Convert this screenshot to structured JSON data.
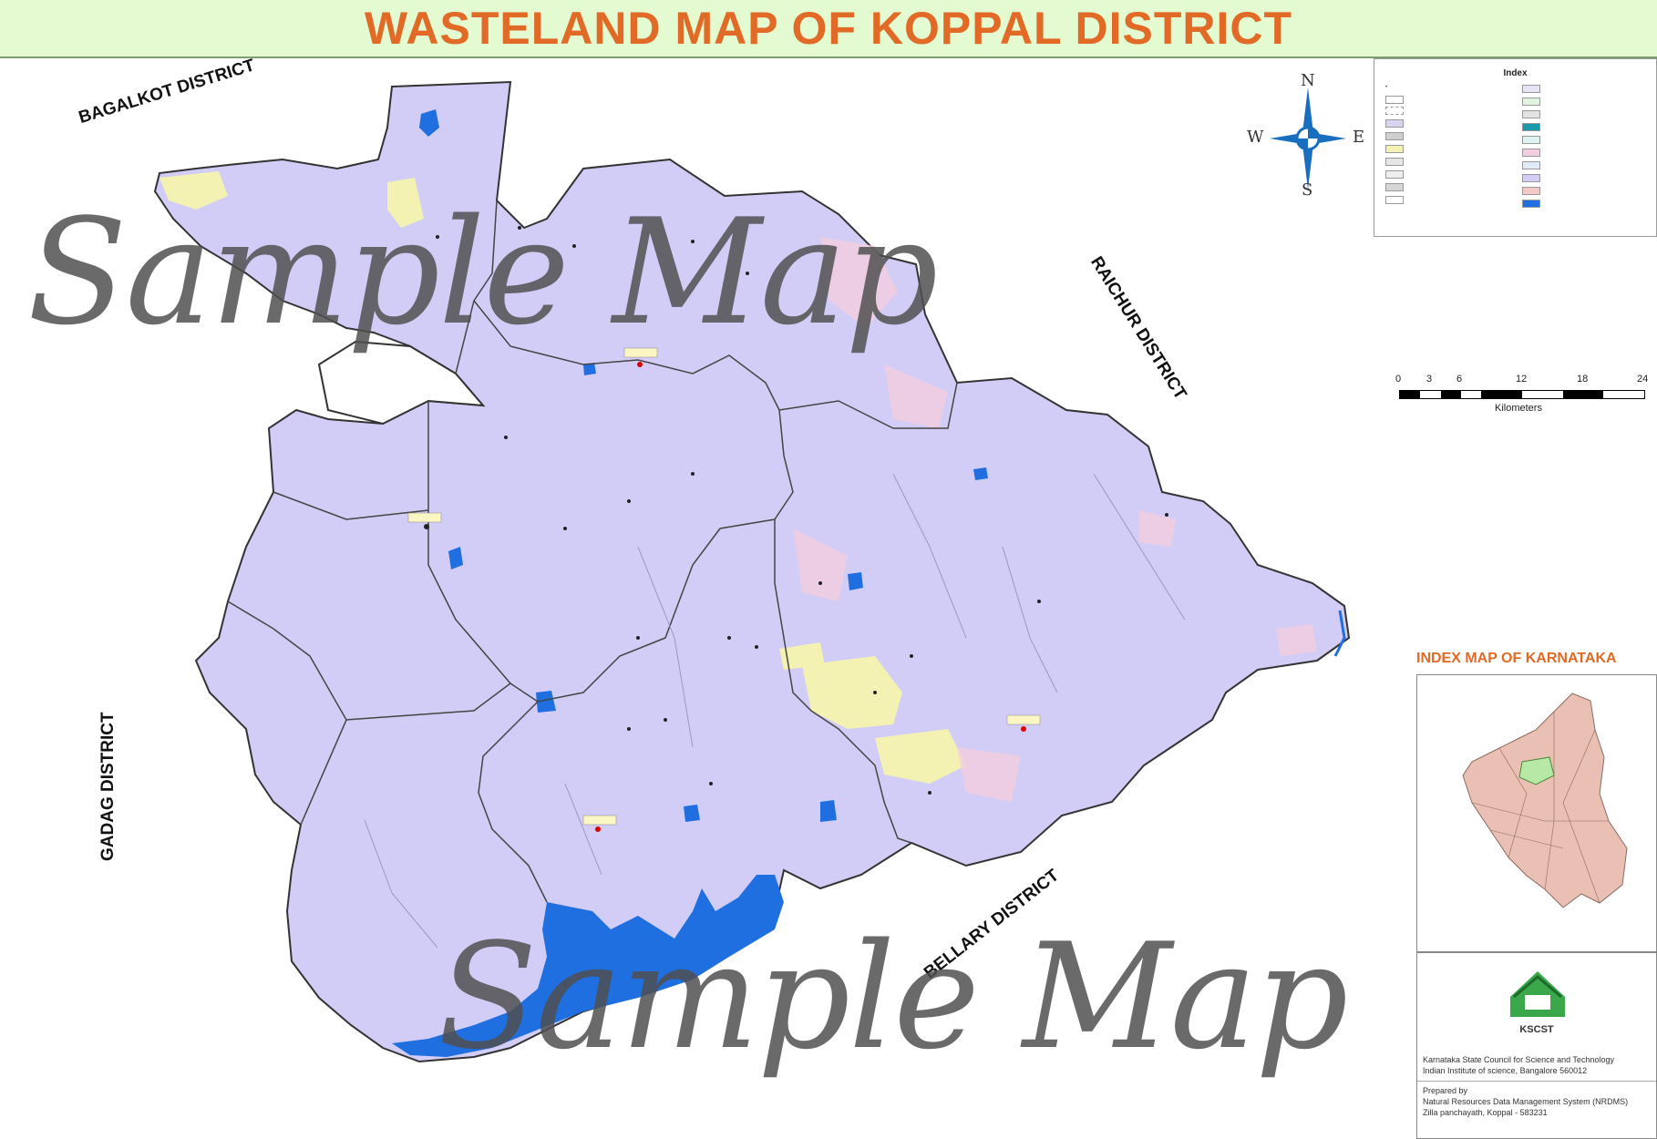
{
  "title": "WASTELAND  MAP OF KOPPAL DISTRICT",
  "neighbors": {
    "bagalkot": "BAGALKOT  DISTRICT",
    "raichur": "RAICHUR  DISTRICT",
    "gadag": "GADAG DISTRICT",
    "bellary": "BELLARY DISTRICT"
  },
  "legend": {
    "title": "Index"
  },
  "compass": {
    "n": "N",
    "s": "S",
    "e": "E",
    "w": "W"
  },
  "scale": {
    "ticks": [
      "0",
      "3",
      "6",
      "12",
      "18",
      "24"
    ],
    "unit": "Kilometers"
  },
  "index_map": {
    "title": "INDEX  MAP OF KARNATAKA"
  },
  "org": {
    "abbr": "KSCST",
    "line1": "Karnataka State Council for Science and Technology",
    "line2": "Indian Institute of science, Bangalore 560012",
    "prepared_by": "Prepared by",
    "line3": "Natural Resources Data Management System (NRDMS)",
    "line4": "Zilla panchayath, Koppal - 583231"
  },
  "watermark": "Sample Map",
  "colors": {
    "land": "#d2cdf6",
    "water": "#1f6fe0",
    "title_text": "#e06a26",
    "title_bg": "#e4fbd2"
  }
}
